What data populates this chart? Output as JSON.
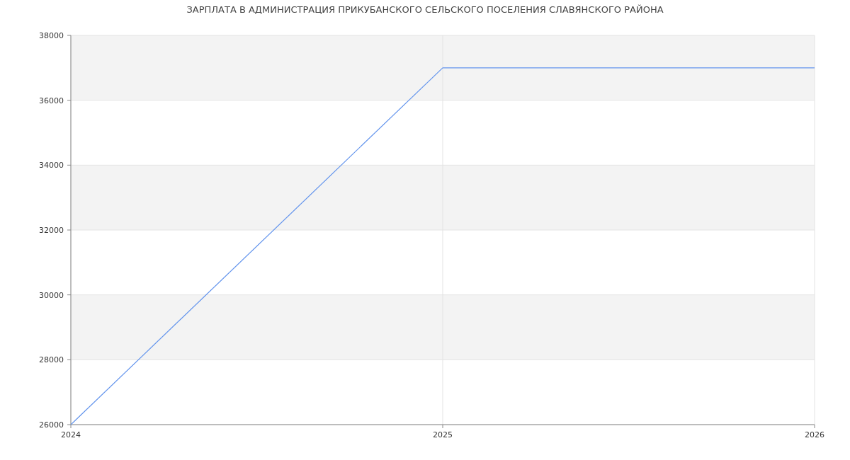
{
  "chart_data": {
    "type": "line",
    "title": "ЗАРПЛАТА В АДМИНИСТРАЦИЯ ПРИКУБАНСКОГО СЕЛЬСКОГО ПОСЕЛЕНИЯ СЛАВЯНСКОГО РАЙОНА",
    "x": [
      2024,
      2025,
      2026
    ],
    "series": [
      {
        "color": "#6495ed",
        "values": [
          26000,
          37000,
          37000
        ]
      }
    ],
    "xlim": [
      2024,
      2026
    ],
    "xticks": [
      2024,
      2025,
      2026
    ],
    "ylim": [
      26000,
      38000
    ],
    "yticks": [
      26000,
      28000,
      30000,
      32000,
      34000,
      36000,
      38000
    ],
    "grid": true,
    "marker": "none",
    "line_style": "solid"
  }
}
